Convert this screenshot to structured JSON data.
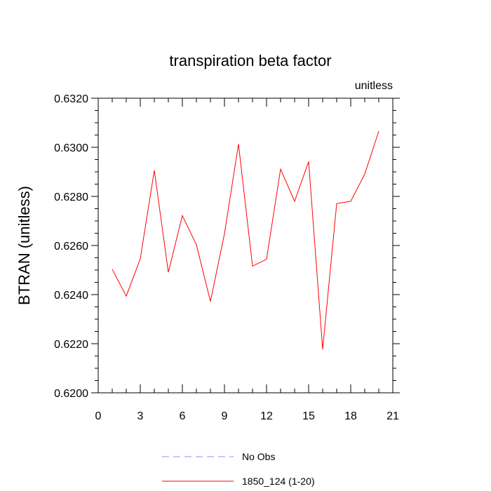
{
  "chart_data": {
    "type": "line",
    "title": "transpiration beta factor",
    "units_label": "unitless",
    "ylabel": "BTRAN  (unitless)",
    "xlabel": "",
    "xlim": [
      0,
      21
    ],
    "ylim": [
      0.62,
      0.632
    ],
    "x_ticks": [
      0,
      3,
      6,
      9,
      12,
      15,
      18,
      21
    ],
    "x_tick_labels": [
      "0",
      "3",
      "6",
      "9",
      "12",
      "15",
      "18",
      "21"
    ],
    "y_ticks": [
      0.62,
      0.622,
      0.624,
      0.626,
      0.628,
      0.63,
      0.632
    ],
    "y_tick_labels": [
      "0.6200",
      "0.6220",
      "0.6240",
      "0.6260",
      "0.6280",
      "0.6300",
      "0.6320"
    ],
    "grid": false,
    "legend_position": "bottom",
    "series": [
      {
        "name": "1850_124 (1-20)",
        "color": "#ff0000",
        "style": "solid",
        "x": [
          1,
          2,
          3,
          4,
          5,
          6,
          7,
          8,
          9,
          10,
          11,
          12,
          13,
          14,
          15,
          16,
          17,
          18,
          19,
          20
        ],
        "values": [
          0.62503,
          0.62394,
          0.62546,
          0.62906,
          0.62491,
          0.62722,
          0.62603,
          0.62372,
          0.62648,
          0.63013,
          0.62516,
          0.62544,
          0.62911,
          0.6278,
          0.62942,
          0.62177,
          0.62771,
          0.6278,
          0.62891,
          0.63066
        ]
      }
    ],
    "legend": [
      {
        "label": "No Obs",
        "color": "#8c8cff",
        "style": "dashed"
      },
      {
        "label": "1850_124 (1-20)",
        "color": "#ff0000",
        "style": "solid"
      }
    ]
  }
}
